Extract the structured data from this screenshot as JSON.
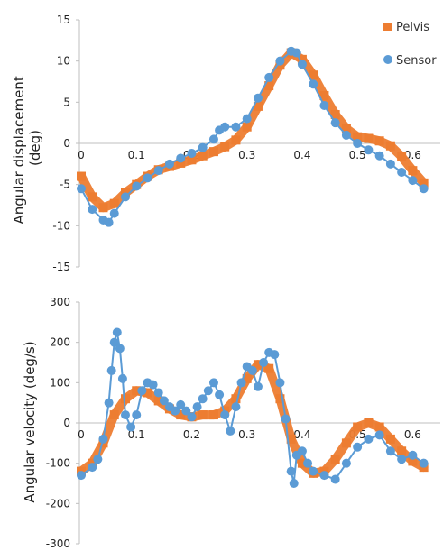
{
  "chart_data": [
    {
      "type": "scatter",
      "ylabel": "Angular displacement (deg)",
      "ylabel_lines": [
        "Angular displacement",
        "(deg)"
      ],
      "xlim": [
        0,
        0.65
      ],
      "ylim": [
        -15,
        15
      ],
      "xticks": [
        "0",
        "0.1",
        "0.2",
        "0.3",
        "0.4",
        "0.5",
        "0.6"
      ],
      "yticks": [
        "15",
        "10",
        "5",
        "0",
        "-5",
        "-10",
        "-15"
      ],
      "legend": {
        "placement": "top-right"
      },
      "grid": false,
      "series": [
        {
          "name": "Pelvis",
          "color": "#ED7D31",
          "marker": "square",
          "x": [
            0,
            0.02,
            0.04,
            0.06,
            0.08,
            0.1,
            0.12,
            0.14,
            0.16,
            0.18,
            0.2,
            0.22,
            0.24,
            0.26,
            0.28,
            0.3,
            0.32,
            0.34,
            0.36,
            0.38,
            0.4,
            0.42,
            0.44,
            0.46,
            0.48,
            0.5,
            0.52,
            0.54,
            0.56,
            0.58,
            0.6,
            0.62
          ],
          "y": [
            -4.0,
            -6.5,
            -7.8,
            -7.3,
            -6.0,
            -5.0,
            -4.0,
            -3.2,
            -2.8,
            -2.4,
            -2.0,
            -1.5,
            -1.0,
            -0.4,
            0.4,
            2.0,
            4.5,
            7.0,
            9.5,
            11.0,
            10.2,
            8.3,
            5.8,
            3.5,
            1.8,
            0.8,
            0.6,
            0.3,
            -0.3,
            -1.6,
            -3.3,
            -4.8
          ]
        },
        {
          "name": "Sensor",
          "color": "#5B9BD5",
          "marker": "circle",
          "x": [
            0,
            0.02,
            0.04,
            0.05,
            0.06,
            0.08,
            0.1,
            0.12,
            0.14,
            0.16,
            0.18,
            0.2,
            0.22,
            0.24,
            0.25,
            0.26,
            0.28,
            0.3,
            0.32,
            0.34,
            0.36,
            0.38,
            0.39,
            0.4,
            0.42,
            0.44,
            0.46,
            0.48,
            0.5,
            0.52,
            0.54,
            0.56,
            0.58,
            0.6,
            0.62
          ],
          "y": [
            -5.5,
            -8.0,
            -9.3,
            -9.6,
            -8.5,
            -6.5,
            -5.2,
            -4.2,
            -3.3,
            -2.5,
            -1.8,
            -1.2,
            -0.5,
            0.5,
            1.6,
            2.0,
            2.0,
            3.0,
            5.5,
            8.0,
            10.0,
            11.2,
            11.0,
            9.6,
            7.2,
            4.6,
            2.5,
            1.0,
            0.0,
            -0.8,
            -1.5,
            -2.5,
            -3.5,
            -4.5,
            -5.5
          ]
        }
      ]
    },
    {
      "type": "scatter",
      "ylabel": "Angular velocity (deg/s)",
      "ylabel_lines": [
        "Angular velocity (deg/s)"
      ],
      "xlim": [
        0,
        0.65
      ],
      "ylim": [
        -300,
        300
      ],
      "xticks": [
        "0",
        "0.1",
        "0.2",
        "0.3",
        "0.4",
        "0.5",
        "0.6"
      ],
      "yticks": [
        "300",
        "200",
        "100",
        "0",
        "-100",
        "-200",
        "-300"
      ],
      "grid": false,
      "series": [
        {
          "name": "Pelvis",
          "color": "#ED7D31",
          "marker": "square",
          "x": [
            0,
            0.02,
            0.04,
            0.06,
            0.08,
            0.1,
            0.12,
            0.14,
            0.16,
            0.18,
            0.2,
            0.22,
            0.24,
            0.26,
            0.28,
            0.3,
            0.32,
            0.34,
            0.36,
            0.38,
            0.4,
            0.42,
            0.44,
            0.46,
            0.48,
            0.5,
            0.52,
            0.54,
            0.56,
            0.58,
            0.6,
            0.62
          ],
          "y": [
            -120,
            -100,
            -50,
            20,
            60,
            80,
            75,
            55,
            35,
            20,
            15,
            20,
            20,
            30,
            60,
            110,
            145,
            135,
            60,
            -40,
            -100,
            -125,
            -120,
            -90,
            -50,
            -10,
            0,
            -10,
            -40,
            -70,
            -95,
            -110
          ]
        },
        {
          "name": "Sensor",
          "color": "#5B9BD5",
          "marker": "circle",
          "x": [
            0,
            0.02,
            0.03,
            0.04,
            0.05,
            0.055,
            0.06,
            0.065,
            0.07,
            0.075,
            0.08,
            0.09,
            0.1,
            0.11,
            0.12,
            0.13,
            0.14,
            0.15,
            0.16,
            0.17,
            0.18,
            0.19,
            0.2,
            0.21,
            0.22,
            0.23,
            0.24,
            0.25,
            0.26,
            0.27,
            0.28,
            0.29,
            0.3,
            0.31,
            0.32,
            0.33,
            0.34,
            0.35,
            0.36,
            0.37,
            0.38,
            0.385,
            0.39,
            0.4,
            0.41,
            0.42,
            0.44,
            0.46,
            0.48,
            0.5,
            0.52,
            0.54,
            0.56,
            0.58,
            0.6,
            0.62
          ],
          "y": [
            -130,
            -110,
            -90,
            -40,
            50,
            130,
            200,
            225,
            185,
            110,
            20,
            -10,
            20,
            80,
            100,
            95,
            75,
            55,
            40,
            30,
            45,
            30,
            15,
            40,
            60,
            80,
            100,
            70,
            20,
            -20,
            40,
            100,
            140,
            130,
            90,
            150,
            175,
            170,
            100,
            10,
            -120,
            -150,
            -80,
            -70,
            -100,
            -120,
            -130,
            -140,
            -100,
            -60,
            -40,
            -30,
            -70,
            -90,
            -80,
            -100
          ]
        }
      ]
    }
  ]
}
